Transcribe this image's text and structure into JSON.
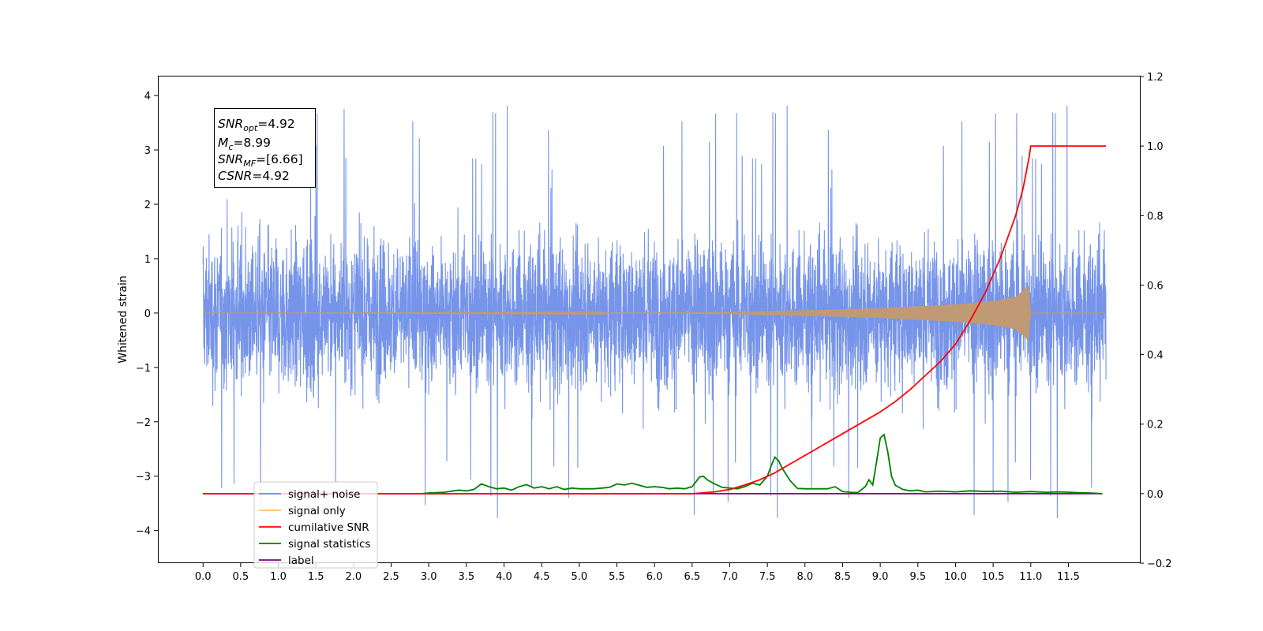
{
  "chart_data": {
    "type": "line",
    "title": "",
    "xlabel": "",
    "ylabel": "Whitened strain",
    "xlim": [
      -0.6,
      12.45
    ],
    "ylim": [
      -4.6,
      4.35
    ],
    "y2lim": [
      -0.2,
      1.2
    ],
    "x_ticks": [
      "0.0",
      "0.5",
      "1.0",
      "1.5",
      "2.0",
      "2.5",
      "3.0",
      "3.5",
      "4.0",
      "4.5",
      "5.0",
      "5.5",
      "6.0",
      "6.5",
      "7.0",
      "7.5",
      "8.0",
      "8.5",
      "9.0",
      "9.5",
      "10.0",
      "10.5",
      "11.0",
      "11.5"
    ],
    "y_ticks": [
      "4",
      "3",
      "2",
      "1",
      "0",
      "−1",
      "−2",
      "−3",
      "−4"
    ],
    "y2_ticks": [
      "1.2",
      "1.0",
      "0.8",
      "0.6",
      "0.4",
      "0.2",
      "0.0",
      "−0.2"
    ],
    "grid": false,
    "legend_position": "lower-left",
    "annotation": {
      "snr_opt": {
        "base": "SNR",
        "sub": "opt",
        "value": "=4.92"
      },
      "mc": {
        "base": "M",
        "sub": "c",
        "value": "=8.99"
      },
      "snr_mf": {
        "base": "SNR",
        "sub": "MF",
        "value": "=[6.66]"
      },
      "csnr": {
        "base": "CSNR",
        "value": "=4.92"
      }
    },
    "series": [
      {
        "name": "signal+ noise",
        "color": "#6f8ee8",
        "axis": "left",
        "description": "dense noise",
        "x_range": [
          0.0,
          12.0
        ],
        "typical_range": [
          -2.3,
          2.3
        ],
        "extremes": [
          4.0,
          -4.1
        ]
      },
      {
        "name": "signal only",
        "color": "#ffbf60",
        "axis": "left",
        "description": "chirp",
        "x_range": [
          0.0,
          12.0
        ],
        "envelope": {
          "x": [
            0.0,
            6.0,
            7.0,
            8.0,
            9.0,
            10.0,
            10.5,
            10.8,
            10.97,
            11.0,
            12.0
          ],
          "amp": [
            0.0,
            0.01,
            0.02,
            0.05,
            0.09,
            0.16,
            0.22,
            0.3,
            0.5,
            0.0,
            0.0
          ]
        }
      },
      {
        "name": "cumilative SNR",
        "color": "#ff0000",
        "axis": "right",
        "x": [
          0.0,
          6.5,
          6.8,
          7.0,
          7.2,
          7.4,
          7.6,
          7.8,
          8.0,
          8.2,
          8.4,
          8.6,
          8.8,
          9.0,
          9.2,
          9.4,
          9.6,
          9.8,
          10.0,
          10.2,
          10.4,
          10.6,
          10.8,
          10.9,
          10.98,
          11.0,
          12.0
        ],
        "y": [
          0.0,
          0.0,
          0.005,
          0.012,
          0.025,
          0.04,
          0.06,
          0.085,
          0.11,
          0.135,
          0.16,
          0.185,
          0.21,
          0.235,
          0.265,
          0.3,
          0.34,
          0.38,
          0.43,
          0.5,
          0.58,
          0.68,
          0.8,
          0.88,
          0.97,
          1.0,
          1.0
        ]
      },
      {
        "name": "signal statistics",
        "color": "#008000",
        "axis": "right",
        "x": [
          2.9,
          3.0,
          3.2,
          3.4,
          3.5,
          3.6,
          3.7,
          3.8,
          3.9,
          4.0,
          4.1,
          4.2,
          4.3,
          4.4,
          4.5,
          4.6,
          4.7,
          4.8,
          4.9,
          5.0,
          5.1,
          5.2,
          5.3,
          5.4,
          5.5,
          5.6,
          5.7,
          5.8,
          5.9,
          6.0,
          6.1,
          6.2,
          6.3,
          6.4,
          6.5,
          6.6,
          6.65,
          6.7,
          6.8,
          6.9,
          7.0,
          7.1,
          7.2,
          7.3,
          7.4,
          7.5,
          7.55,
          7.6,
          7.65,
          7.7,
          7.8,
          7.9,
          8.0,
          8.1,
          8.2,
          8.3,
          8.4,
          8.5,
          8.6,
          8.7,
          8.8,
          8.85,
          8.9,
          8.95,
          9.0,
          9.05,
          9.1,
          9.15,
          9.2,
          9.3,
          9.4,
          9.5,
          9.6,
          9.8,
          10.0,
          10.2,
          10.4,
          10.6,
          10.8,
          11.0,
          11.2,
          11.4,
          11.6,
          11.8,
          11.95
        ],
        "y": [
          0.0,
          0.002,
          0.004,
          0.01,
          0.008,
          0.012,
          0.028,
          0.02,
          0.014,
          0.016,
          0.01,
          0.02,
          0.026,
          0.016,
          0.02,
          0.014,
          0.02,
          0.012,
          0.016,
          0.014,
          0.014,
          0.014,
          0.016,
          0.018,
          0.028,
          0.025,
          0.03,
          0.024,
          0.018,
          0.02,
          0.018,
          0.014,
          0.016,
          0.014,
          0.02,
          0.048,
          0.05,
          0.04,
          0.028,
          0.018,
          0.016,
          0.014,
          0.02,
          0.03,
          0.025,
          0.05,
          0.08,
          0.105,
          0.094,
          0.072,
          0.038,
          0.015,
          0.014,
          0.014,
          0.014,
          0.014,
          0.02,
          0.006,
          0.004,
          0.003,
          0.02,
          0.04,
          0.025,
          0.09,
          0.16,
          0.17,
          0.12,
          0.05,
          0.024,
          0.012,
          0.008,
          0.01,
          0.005,
          0.007,
          0.005,
          0.008,
          0.006,
          0.007,
          0.004,
          0.006,
          0.004,
          0.005,
          0.003,
          0.002,
          0.0
        ]
      },
      {
        "name": "label",
        "color": "#800080",
        "axis": "right",
        "x": [
          0.0,
          11.95
        ],
        "y": [
          0.0,
          0.0
        ]
      }
    ],
    "legend": [
      {
        "label": "signal+ noise",
        "color": "#6f8ee8"
      },
      {
        "label": "signal only",
        "color": "#ffbf60"
      },
      {
        "label": "cumilative SNR",
        "color": "#ff0000"
      },
      {
        "label": "signal statistics",
        "color": "#008000"
      },
      {
        "label": "label",
        "color": "#800080"
      }
    ]
  }
}
